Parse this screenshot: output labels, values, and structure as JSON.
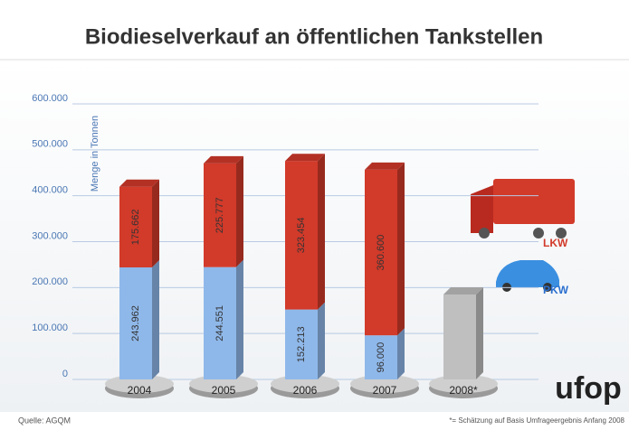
{
  "chart_data": {
    "type": "stacked-bar",
    "title": "Biodieselverkauf an öffentlichen Tankstellen",
    "y_label": "Menge in Tonnen",
    "categories": [
      "2004",
      "2005",
      "2006",
      "2007",
      "2008*"
    ],
    "series": [
      {
        "name": "PKW",
        "color": "#8fb8ea",
        "values": [
          243962,
          244551,
          152213,
          96000,
          null
        ],
        "value_labels": [
          "243.962",
          "244.551",
          "152.213",
          "96.000",
          null
        ]
      },
      {
        "name": "LKW",
        "color": "#d23a2a",
        "values": [
          175662,
          225777,
          323454,
          360600,
          null
        ],
        "value_labels": [
          "175.662",
          "225.777",
          "323.454",
          "360.600",
          null
        ]
      },
      {
        "color": "#bfbfbf",
        "values": [
          null,
          null,
          null,
          null,
          185000
        ]
      }
    ],
    "ylim": [
      0,
      600000
    ],
    "yticks": [
      0,
      {
        "value": 100000,
        "label": "100.000"
      },
      {
        "value": 200000,
        "label": "200.000"
      },
      {
        "value": 300000,
        "label": "300.000"
      },
      {
        "value": 400000,
        "label": "400.000"
      },
      {
        "value": 500000,
        "label": "500.000"
      },
      {
        "value": 600000,
        "label": "600.000"
      }
    ],
    "grid": true,
    "source": "Quelle: AGQM",
    "footnote": "*= Schätzung auf Basis Umfrageergebnis Anfang 2008",
    "logo": "ufop"
  }
}
